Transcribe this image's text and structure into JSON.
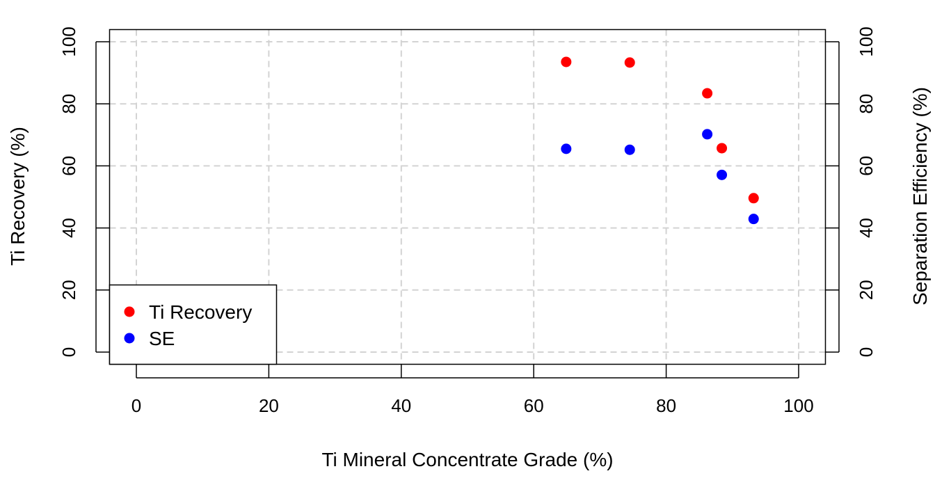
{
  "chart_data": {
    "type": "scatter",
    "title": "",
    "xlabel": "Ti Mineral Concentrate Grade (%)",
    "ylabel": "Ti Recovery (%)",
    "y2label": "Separation Efficiency (%)",
    "xlim": [
      0,
      100
    ],
    "ylim": [
      0,
      100
    ],
    "y2lim": [
      0,
      100
    ],
    "x_ticks": [
      0,
      20,
      40,
      60,
      80,
      100
    ],
    "y_ticks": [
      0,
      20,
      40,
      60,
      80,
      100
    ],
    "y2_ticks": [
      0,
      20,
      40,
      60,
      80,
      100
    ],
    "grid": true,
    "legend_position": "bottom-left",
    "series": [
      {
        "name": "Ti Recovery",
        "axis": "left",
        "color": "#ff0000",
        "x": [
          64.9,
          74.5,
          86.2,
          88.4,
          93.2
        ],
        "y": [
          93.5,
          93.3,
          83.4,
          65.7,
          49.6
        ]
      },
      {
        "name": "SE",
        "axis": "right",
        "color": "#0000ff",
        "x": [
          64.9,
          74.5,
          86.2,
          88.4,
          93.2
        ],
        "y": [
          65.5,
          65.2,
          70.2,
          57.1,
          42.9
        ]
      }
    ]
  }
}
